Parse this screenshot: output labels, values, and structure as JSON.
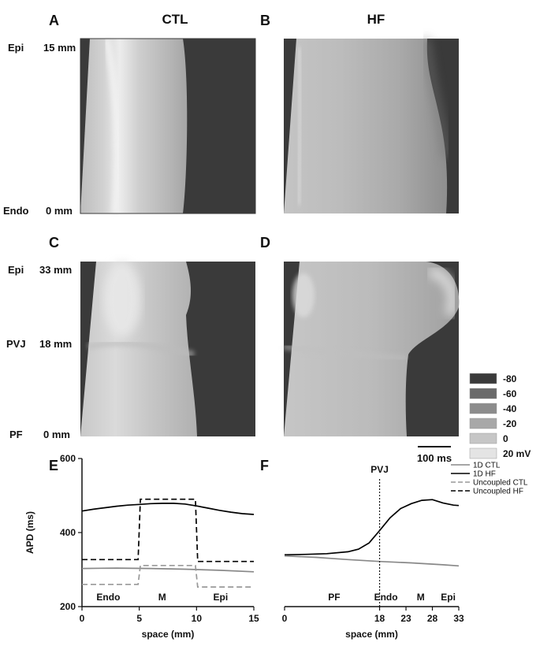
{
  "panel_letters": {
    "a": "A",
    "b": "B",
    "c": "C",
    "d": "D",
    "e": "E",
    "f": "F"
  },
  "column_headers": {
    "ctl": "CTL",
    "hf": "HF"
  },
  "row_labels_top": {
    "epi": "Epi",
    "endo": "Endo",
    "top_mm": "15 mm",
    "bottom_mm": "0 mm"
  },
  "row_labels_mid": {
    "epi": "Epi",
    "pvj": "PVJ",
    "pf": "PF",
    "top_mm": "33 mm",
    "mid_mm": "18 mm",
    "bottom_mm": "0 mm"
  },
  "colorbar": {
    "entries": [
      "-80",
      "-60",
      "-40",
      "-20",
      "0",
      "20 mV"
    ],
    "colors": [
      "#3a3a3a",
      "#6a6a6a",
      "#8c8c8c",
      "#a8a8a8",
      "#c6c6c6",
      "#e4e4e4"
    ]
  },
  "scalebar_label": "100 ms",
  "chart_data": [
    {
      "panel": "E",
      "type": "line",
      "title": "",
      "xlabel": "space (mm)",
      "ylabel": "APD (ms)",
      "xlim": [
        0,
        15
      ],
      "ylim": [
        200,
        600
      ],
      "xticks": [
        "0",
        "5",
        "10",
        "15"
      ],
      "yticks": [
        "200",
        "400",
        "600"
      ],
      "region_labels": [
        "Endo",
        "M",
        "Epi"
      ],
      "series": [
        {
          "name": "1D HF",
          "style": "solid",
          "color": "#000000",
          "x": [
            0,
            1,
            2,
            3,
            4,
            5,
            6,
            7,
            8,
            9,
            10,
            11,
            12,
            13,
            14,
            15
          ],
          "values": [
            458,
            463,
            467,
            471,
            474,
            476,
            478,
            479,
            479,
            477,
            472,
            466,
            460,
            455,
            451,
            449
          ]
        },
        {
          "name": "1D CTL",
          "style": "solid",
          "color": "#888888",
          "x": [
            0,
            3,
            6,
            9,
            12,
            15
          ],
          "values": [
            303,
            304,
            303,
            301,
            298,
            294
          ]
        },
        {
          "name": "Uncoupled HF",
          "style": "dashed",
          "color": "#000000",
          "x": [
            0,
            4.9,
            4.9,
            5.1,
            5.1,
            9.9,
            9.9,
            10.1,
            10.1,
            15
          ],
          "values": [
            327,
            327,
            327,
            490,
            490,
            490,
            490,
            322,
            322,
            322
          ]
        },
        {
          "name": "Uncoupled CTL",
          "style": "dashed",
          "color": "#999999",
          "x": [
            0,
            4.9,
            4.9,
            5.1,
            5.1,
            9.9,
            9.9,
            10.1,
            10.1,
            15
          ],
          "values": [
            260,
            260,
            260,
            311,
            311,
            311,
            311,
            253,
            253,
            253
          ]
        }
      ]
    },
    {
      "panel": "F",
      "type": "line",
      "title": "",
      "xlabel": "space (mm)",
      "xlim": [
        0,
        33
      ],
      "ylim": [
        200,
        600
      ],
      "xticks": [
        "0",
        "18",
        "23",
        "28",
        "33"
      ],
      "annotation": "PVJ",
      "annotation_x": 18,
      "region_labels": [
        "PF",
        "Endo",
        "M",
        "Epi"
      ],
      "legend": [
        "1D CTL",
        "1D HF",
        "Uncoupled CTL",
        "Uncoupled HF"
      ],
      "series": [
        {
          "name": "1D HF",
          "style": "solid",
          "color": "#000000",
          "x": [
            0,
            4,
            8,
            12,
            14,
            16,
            18,
            20,
            22,
            24,
            26,
            28,
            30,
            32,
            33
          ],
          "values": [
            340,
            341,
            343,
            348,
            355,
            372,
            405,
            440,
            465,
            478,
            487,
            489,
            480,
            474,
            473
          ]
        },
        {
          "name": "1D CTL",
          "style": "solid",
          "color": "#888888",
          "x": [
            0,
            6,
            12,
            18,
            24,
            30,
            33
          ],
          "values": [
            337,
            333,
            327,
            322,
            318,
            313,
            310
          ]
        }
      ]
    }
  ]
}
